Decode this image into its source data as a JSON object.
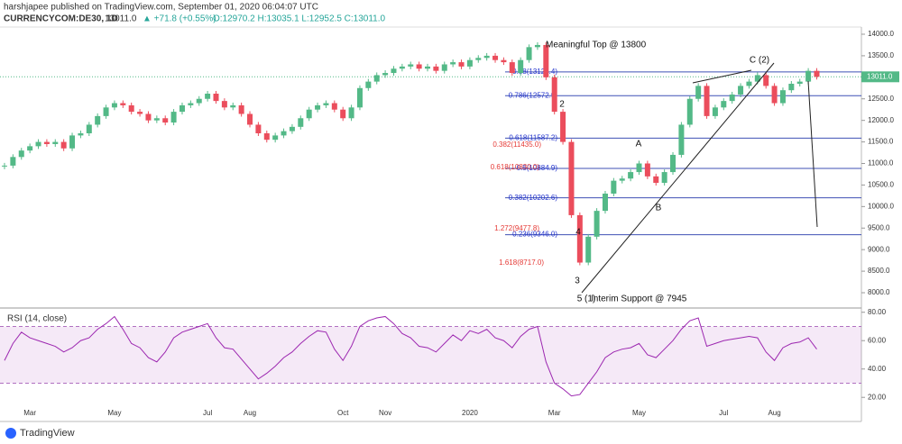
{
  "header": {
    "author": "harshjapee published on TradingView.com, September 01, 2020 06:04:07 UTC",
    "symbol": "CURRENCYCOM:DE30, 1D",
    "price": "13011.0",
    "change": "▲ +71.8 (+0.55%)",
    "ohlc": "O:12970.2 H:13035.1 L:12952.5 C:13011.0",
    "brand": "TradingView"
  },
  "chart_data": [
    {
      "type": "candlestick",
      "categories": [
        null,
        null,
        null,
        "Mar",
        null,
        null,
        null,
        null,
        null,
        null,
        null,
        null,
        null,
        "May",
        null,
        null,
        null,
        null,
        null,
        null,
        null,
        null,
        null,
        null,
        "Jul",
        null,
        null,
        null,
        null,
        "Aug",
        null,
        null,
        null,
        null,
        null,
        null,
        null,
        null,
        null,
        null,
        "Oct",
        null,
        null,
        null,
        null,
        "Nov",
        null,
        null,
        null,
        null,
        null,
        null,
        null,
        null,
        null,
        "2020",
        null,
        null,
        null,
        null,
        null,
        null,
        null,
        null,
        null,
        "Mar",
        null,
        null,
        null,
        null,
        null,
        null,
        null,
        null,
        null,
        "May",
        null,
        null,
        null,
        null,
        null,
        null,
        null,
        null,
        null,
        "Jul",
        null,
        null,
        null,
        null,
        null,
        "Aug",
        null,
        null,
        null,
        null,
        null
      ],
      "close": [
        10950,
        11150,
        11300,
        11400,
        11500,
        11450,
        11500,
        11350,
        11650,
        11700,
        11900,
        12100,
        12300,
        12400,
        12350,
        12200,
        12150,
        12000,
        12050,
        11950,
        12200,
        12350,
        12400,
        12500,
        12620,
        12450,
        12300,
        12350,
        12150,
        11900,
        11700,
        11550,
        11650,
        11750,
        11850,
        12050,
        12250,
        12350,
        12400,
        12250,
        12050,
        12300,
        12750,
        12900,
        13050,
        13100,
        13200,
        13250,
        13300,
        13200,
        13250,
        13150,
        13300,
        13350,
        13250,
        13400,
        13450,
        13500,
        13400,
        13350,
        13100,
        13400,
        13700,
        13750,
        13000,
        12200,
        11500,
        9800,
        8700,
        9300,
        9900,
        10300,
        10600,
        10650,
        10800,
        11000,
        10700,
        10550,
        10800,
        11200,
        11900,
        12500,
        12800,
        12100,
        12300,
        12450,
        12600,
        12800,
        12900,
        13050,
        12800,
        12400,
        12700,
        12850,
        12900,
        13150,
        13011
      ],
      "up_color": "#53b987",
      "down_color": "#eb4d5c",
      "ylim": [
        7645,
        14167
      ],
      "yticks": [
        {
          "value": 8000,
          "label": "8000.0"
        },
        {
          "value": 8500,
          "label": "8500.0"
        },
        {
          "value": 9000,
          "label": "9000.0"
        },
        {
          "value": 9500,
          "label": "9500.0"
        },
        {
          "value": 10000,
          "label": "10000.0"
        },
        {
          "value": 10500,
          "label": "10500.0"
        },
        {
          "value": 11000,
          "label": "11000.0"
        },
        {
          "value": 11500,
          "label": "11500.0"
        },
        {
          "value": 12000,
          "label": "12000.0"
        },
        {
          "value": 12500,
          "label": "12500.0"
        },
        {
          "value": 13000,
          "label": "13000.0"
        },
        {
          "value": 13500,
          "label": "13500.0"
        },
        {
          "value": 14000,
          "label": "14000.0"
        }
      ],
      "last": {
        "value": 13011,
        "label": "13011.0"
      },
      "levels": [
        {
          "value": 13124.4,
          "label": "0.88(13124.4)"
        },
        {
          "value": 12572.9,
          "label": "0.786(12572.9)"
        },
        {
          "value": 11587.2,
          "label": "0.618(11587.2)"
        },
        {
          "value": 10884.9,
          "label": "0.5(10884.9)"
        },
        {
          "value": 10202.6,
          "label": "0.382(10202.6)"
        },
        {
          "value": 9346.0,
          "label": "0.236(9346.0)"
        }
      ],
      "red_levels": [
        "0.382(11435.0)",
        "0.618(10830.0)",
        "1.272(9477.8)",
        "1.618(8717.0)"
      ],
      "annotations": [
        "Meaningful Top @ 13800",
        "2",
        "A",
        "B",
        "C (2)",
        "3",
        "4",
        "5 (1)",
        "Interim Support @ 7945"
      ]
    },
    {
      "type": "line",
      "title": "RSI (14, close)",
      "color": "#9c27b0",
      "values": [
        46,
        58,
        66,
        62,
        60,
        58,
        56,
        52,
        55,
        60,
        62,
        68,
        72,
        77,
        68,
        58,
        55,
        48,
        45,
        52,
        62,
        66,
        68,
        70,
        72,
        62,
        55,
        54,
        47,
        40,
        33,
        37,
        42,
        48,
        52,
        58,
        63,
        67,
        66,
        54,
        46,
        56,
        70,
        74,
        76,
        77,
        72,
        65,
        62,
        56,
        55,
        52,
        58,
        64,
        60,
        67,
        65,
        68,
        62,
        60,
        55,
        63,
        68,
        70,
        45,
        30,
        26,
        21,
        22,
        30,
        38,
        48,
        52,
        54,
        55,
        58,
        50,
        48,
        54,
        60,
        68,
        74,
        76,
        56,
        58,
        60,
        61,
        62,
        63,
        62,
        52,
        46,
        55,
        58,
        59,
        62,
        54
      ],
      "ylim": [
        3,
        83
      ],
      "yticks": [
        {
          "value": 20,
          "label": "20.00"
        },
        {
          "value": 40,
          "label": "40.00"
        },
        {
          "value": 60,
          "label": "60.00"
        },
        {
          "value": 80,
          "label": "80.00"
        }
      ],
      "bands": [
        30,
        70
      ]
    }
  ]
}
